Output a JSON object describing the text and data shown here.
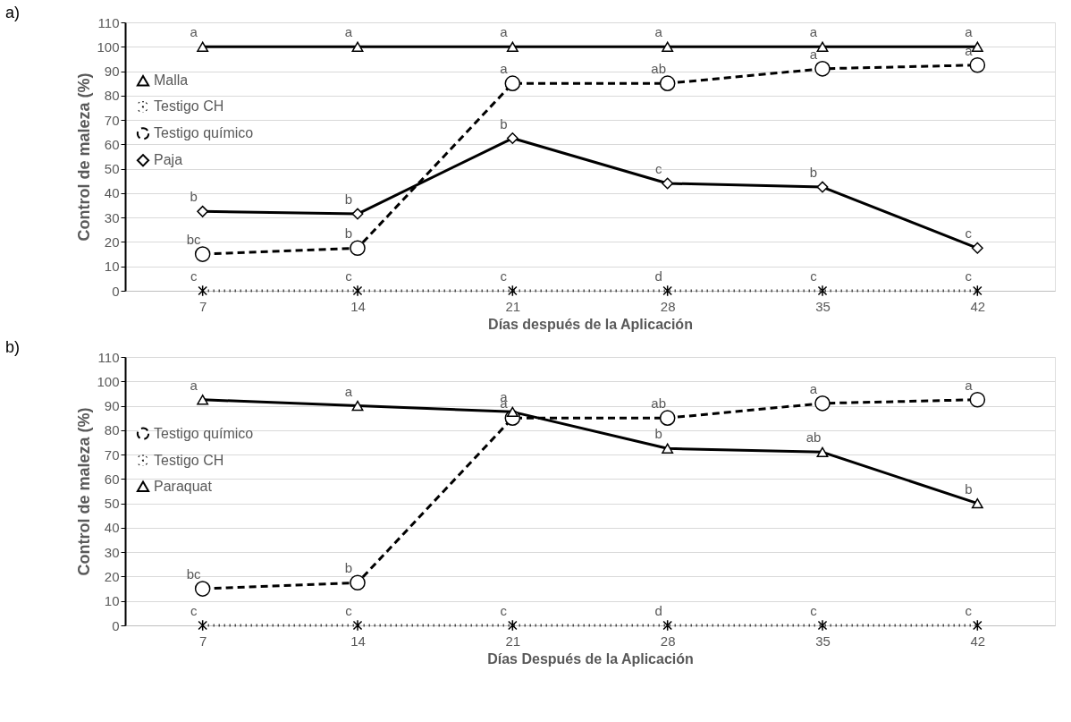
{
  "chart_data": [
    {
      "type": "line",
      "title": "a)",
      "xlabel": "Días después de la Aplicación",
      "ylabel": "Control de maleza (%)",
      "categories": [
        "7",
        "14",
        "21",
        "28",
        "35",
        "42"
      ],
      "ylim": [
        0,
        110
      ],
      "yticks": [
        0,
        10,
        20,
        30,
        40,
        50,
        60,
        70,
        80,
        90,
        100,
        110
      ],
      "grid": "y",
      "legend": "top left",
      "series": [
        {
          "name": "Malla",
          "color": "#000000",
          "marker": "triangle",
          "line_style": "solid",
          "values": [
            100,
            100,
            100,
            100,
            100,
            100
          ]
        },
        {
          "name": "Testigo CH",
          "color": "#000000",
          "marker": "cross",
          "line_style": "dotted",
          "values": [
            0,
            0,
            0,
            0,
            0,
            0
          ]
        },
        {
          "name": "Testigo químico",
          "color": "#000000",
          "marker": "circle",
          "line_style": "dashed",
          "values": [
            15,
            17.5,
            85,
            85,
            91,
            92.5
          ]
        },
        {
          "name": "Paja",
          "color": "#000000",
          "marker": "diamond",
          "line_style": "solid",
          "values": [
            32.5,
            31.5,
            62.5,
            44,
            42.5,
            17.5
          ]
        }
      ],
      "annotations": [
        {
          "text": "a",
          "x": "7",
          "y": 100
        },
        {
          "text": "a",
          "x": "14",
          "y": 100
        },
        {
          "text": "a",
          "x": "21",
          "y": 100
        },
        {
          "text": "a",
          "x": "28",
          "y": 100
        },
        {
          "text": "a",
          "x": "35",
          "y": 100
        },
        {
          "text": "a",
          "x": "42",
          "y": 100
        },
        {
          "text": "c",
          "x": "7",
          "y": 0
        },
        {
          "text": "c",
          "x": "14",
          "y": 0
        },
        {
          "text": "c",
          "x": "21",
          "y": 0
        },
        {
          "text": "d",
          "x": "28",
          "y": 0
        },
        {
          "text": "c",
          "x": "35",
          "y": 0
        },
        {
          "text": "c",
          "x": "42",
          "y": 0
        },
        {
          "text": "bc",
          "x": "7",
          "y": 15
        },
        {
          "text": "b",
          "x": "14",
          "y": 17.5
        },
        {
          "text": "a",
          "x": "21",
          "y": 85
        },
        {
          "text": "ab",
          "x": "28",
          "y": 85
        },
        {
          "text": "a",
          "x": "35",
          "y": 91
        },
        {
          "text": "a",
          "x": "42",
          "y": 92.5
        },
        {
          "text": "b",
          "x": "7",
          "y": 32.5
        },
        {
          "text": "b",
          "x": "14",
          "y": 31.5
        },
        {
          "text": "b",
          "x": "21",
          "y": 62.5
        },
        {
          "text": "c",
          "x": "28",
          "y": 44
        },
        {
          "text": "b",
          "x": "35",
          "y": 42.5
        },
        {
          "text": "c",
          "x": "42",
          "y": 17.5
        }
      ]
    },
    {
      "type": "line",
      "title": "b)",
      "xlabel": "Días Después de la Aplicación",
      "ylabel": "Control de maleza (%)",
      "categories": [
        "7",
        "14",
        "21",
        "28",
        "35",
        "42"
      ],
      "ylim": [
        0,
        110
      ],
      "yticks": [
        0,
        10,
        20,
        30,
        40,
        50,
        60,
        70,
        80,
        90,
        100,
        110
      ],
      "grid": "y",
      "legend": "top left",
      "series": [
        {
          "name": "Testigo químico",
          "color": "#000000",
          "marker": "circle",
          "line_style": "dashed",
          "values": [
            15,
            17.5,
            85,
            85,
            91,
            92.5
          ]
        },
        {
          "name": "Testigo CH",
          "color": "#000000",
          "marker": "cross",
          "line_style": "dotted",
          "values": [
            0,
            0,
            0,
            0,
            0,
            0
          ]
        },
        {
          "name": "Paraquat",
          "color": "#000000",
          "marker": "triangle",
          "line_style": "solid",
          "values": [
            92.5,
            90,
            87.5,
            72.5,
            71,
            50
          ]
        }
      ],
      "annotations": [
        {
          "text": "bc",
          "x": "7",
          "y": 15
        },
        {
          "text": "b",
          "x": "14",
          "y": 17.5
        },
        {
          "text": "a",
          "x": "21",
          "y": 85
        },
        {
          "text": "ab",
          "x": "28",
          "y": 85
        },
        {
          "text": "a",
          "x": "35",
          "y": 91
        },
        {
          "text": "a",
          "x": "42",
          "y": 92.5
        },
        {
          "text": "c",
          "x": "7",
          "y": 0
        },
        {
          "text": "c",
          "x": "14",
          "y": 0
        },
        {
          "text": "c",
          "x": "21",
          "y": 0
        },
        {
          "text": "d",
          "x": "28",
          "y": 0
        },
        {
          "text": "c",
          "x": "35",
          "y": 0
        },
        {
          "text": "c",
          "x": "42",
          "y": 0
        },
        {
          "text": "a",
          "x": "7",
          "y": 92.5
        },
        {
          "text": "a",
          "x": "14",
          "y": 90
        },
        {
          "text": "a",
          "x": "21",
          "y": 87.5
        },
        {
          "text": "b",
          "x": "28",
          "y": 72.5
        },
        {
          "text": "ab",
          "x": "35",
          "y": 71
        },
        {
          "text": "b",
          "x": "42",
          "y": 50
        }
      ]
    }
  ]
}
